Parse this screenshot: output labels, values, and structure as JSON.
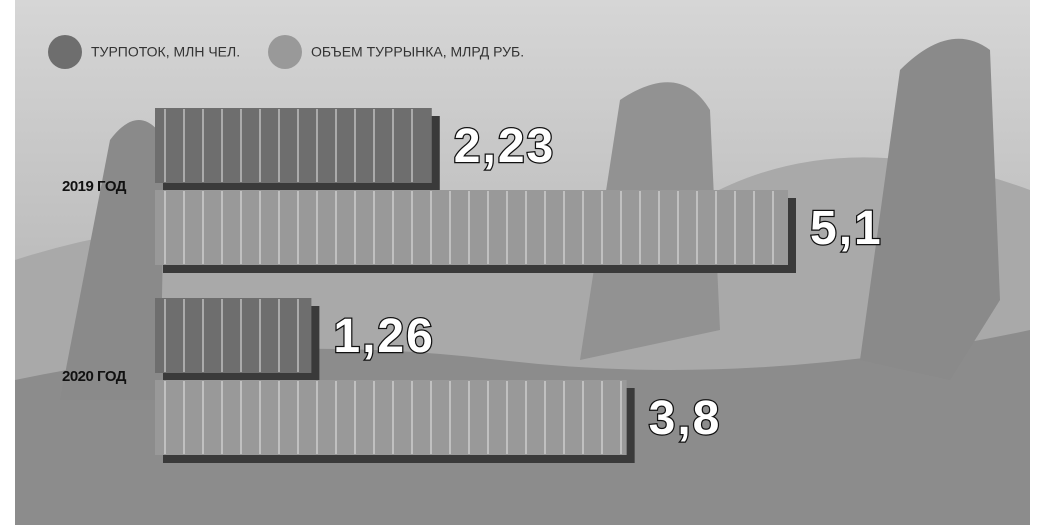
{
  "chart_data": {
    "type": "bar",
    "orientation": "horizontal",
    "categories": [
      "2019 ГОД",
      "2020 ГОД"
    ],
    "series": [
      {
        "name": "ТУРПОТОК, МЛН ЧЕЛ.",
        "color": "#6e6e6e",
        "values": [
          2.23,
          1.26
        ],
        "value_labels": [
          "2,23",
          "1,26"
        ]
      },
      {
        "name": "ОБЪЕМ ТУРРЫНКА, МЛРД РУБ.",
        "color": "#999999",
        "values": [
          5.1,
          3.8
        ],
        "value_labels": [
          "5,1",
          "3,8"
        ]
      }
    ],
    "legend": "top-left"
  }
}
